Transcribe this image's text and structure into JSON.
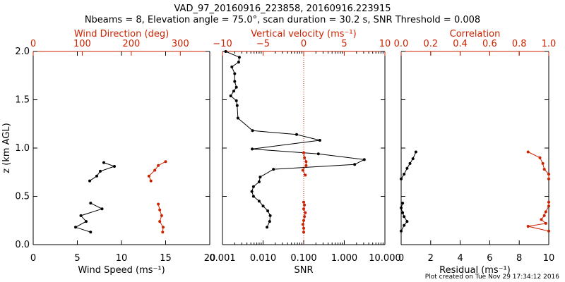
{
  "figure": {
    "title_line1": "VAD_97_20160916_223858, 20160916.223915",
    "title_line2": "Nbeams = 8, Elevation angle = 75.0°, scan duration = 30.2 s, SNR Threshold = 0.008",
    "footer": "Plot created on Tue Nov 29 17:34:12 2016"
  },
  "colors": {
    "primary": "#000000",
    "secondary": "#cc2200"
  },
  "chart_data": [
    {
      "type": "line",
      "panel": "left",
      "ylabel": "z (km AGL)",
      "ylim": [
        0,
        2
      ],
      "yticks": [
        "0.0",
        "0.5",
        "1.0",
        "1.5",
        "2.0"
      ],
      "xlabel_bottom": "Wind Speed (ms⁻¹)",
      "xlim_bottom": [
        0,
        20
      ],
      "xticks_bottom": [
        "0",
        "5",
        "10",
        "15",
        "20"
      ],
      "xlabel_top": "Wind Direction (deg)",
      "xlim_top": [
        0,
        360
      ],
      "xticks_top": [
        "0",
        "100",
        "200",
        "300"
      ],
      "series": [
        {
          "color": "#000000",
          "axis": "bottom",
          "segments": [
            {
              "x": [
                6.4,
                7.2,
                7.6,
                9.2,
                8.0
              ],
              "y": [
                0.66,
                0.71,
                0.76,
                0.81,
                0.85
              ]
            },
            {
              "x": [
                6.5,
                4.8,
                6.0,
                5.4,
                7.8,
                6.5
              ],
              "y": [
                0.13,
                0.18,
                0.24,
                0.3,
                0.37,
                0.43
              ]
            }
          ]
        },
        {
          "color": "#cc2200",
          "axis": "top",
          "segments": [
            {
              "x": [
                240,
                236,
                248,
                255,
                270
              ],
              "y": [
                0.66,
                0.71,
                0.77,
                0.82,
                0.86
              ]
            },
            {
              "x": [
                264,
                265,
                258,
                262,
                258,
                255
              ],
              "y": [
                0.13,
                0.18,
                0.24,
                0.3,
                0.36,
                0.42
              ]
            }
          ]
        }
      ]
    },
    {
      "type": "line",
      "panel": "middle",
      "xlabel_bottom": "SNR",
      "xscale_bottom": "log",
      "xlim_bottom": [
        0.001,
        10
      ],
      "xticks_bottom": [
        "0.001",
        "0.010",
        "0.100",
        "1.000",
        "10.000"
      ],
      "xlabel_top": "Vertical velocity (ms⁻¹)",
      "xlim_top": [
        -10,
        10
      ],
      "xticks_top": [
        "−10",
        "−5",
        "0",
        "5",
        "10"
      ],
      "ylim": [
        0,
        2
      ],
      "reference_line_top_x": 0,
      "series": [
        {
          "color": "#000000",
          "axis": "bottom",
          "x": [
            0.0012,
            0.0026,
            0.0025,
            0.0017,
            0.002,
            0.002,
            0.0022,
            0.0019,
            0.0016,
            0.0022,
            0.0023,
            0.0024,
            0.0055,
            0.067,
            0.25,
            0.0054,
            0.23,
            3.1,
            1.8,
            0.018,
            0.0085,
            0.008,
            0.0058,
            0.0053,
            0.0058,
            0.008,
            0.01,
            0.013,
            0.015,
            0.0145,
            0.0125
          ],
          "y": [
            2.0,
            1.94,
            1.89,
            1.84,
            1.77,
            1.69,
            1.63,
            1.59,
            1.54,
            1.49,
            1.44,
            1.31,
            1.18,
            1.14,
            1.08,
            0.99,
            0.94,
            0.88,
            0.83,
            0.78,
            0.7,
            0.65,
            0.6,
            0.55,
            0.5,
            0.45,
            0.4,
            0.35,
            0.3,
            0.24,
            0.18
          ]
        },
        {
          "color": "#cc2200",
          "axis": "top",
          "segments": [
            {
              "x": [
                0.0,
                0.1,
                0.3,
                0.3,
                -0.1,
                0.2
              ],
              "y": [
                0.95,
                0.9,
                0.86,
                0.82,
                0.77,
                0.72
              ]
            },
            {
              "x": [
                0.0,
                0.1,
                0.0,
                0.2,
                0.1,
                0.0,
                -0.1,
                0.0,
                0.0
              ],
              "y": [
                0.44,
                0.41,
                0.37,
                0.33,
                0.29,
                0.25,
                0.21,
                0.17,
                0.13
              ]
            }
          ]
        }
      ]
    },
    {
      "type": "line",
      "panel": "right",
      "xlabel_bottom": "Residual (ms⁻¹)",
      "xlim_bottom": [
        0,
        10
      ],
      "xticks_bottom": [
        "0",
        "2",
        "4",
        "6",
        "8",
        "10"
      ],
      "xlabel_top": "Correlation",
      "xlim_top": [
        0,
        1
      ],
      "xticks_top": [
        "0.0",
        "0.2",
        "0.4",
        "0.6",
        "0.8",
        "1.0"
      ],
      "ylim": [
        0,
        2
      ],
      "series": [
        {
          "color": "#000000",
          "axis": "bottom",
          "segments": [
            {
              "x": [
                1.0,
                0.8,
                0.6,
                0.4,
                0.2,
                0.0
              ],
              "y": [
                0.96,
                0.89,
                0.84,
                0.79,
                0.73,
                0.68
              ]
            },
            {
              "x": [
                0.1,
                0.0,
                0.1,
                0.2,
                0.4,
                0.2,
                0.0
              ],
              "y": [
                0.43,
                0.38,
                0.33,
                0.29,
                0.24,
                0.2,
                0.14
              ]
            }
          ]
        },
        {
          "color": "#cc2200",
          "axis": "top",
          "segments": [
            {
              "x": [
                0.86,
                0.94,
                0.96,
                0.97,
                1.0,
                1.0
              ],
              "y": [
                0.96,
                0.9,
                0.84,
                0.78,
                0.73,
                0.68
              ]
            },
            {
              "x": [
                1.0,
                1.0,
                0.98,
                0.97,
                0.95,
                0.98,
                0.86,
                1.0
              ],
              "y": [
                0.44,
                0.4,
                0.34,
                0.3,
                0.26,
                0.22,
                0.19,
                0.14
              ]
            }
          ]
        }
      ]
    }
  ]
}
